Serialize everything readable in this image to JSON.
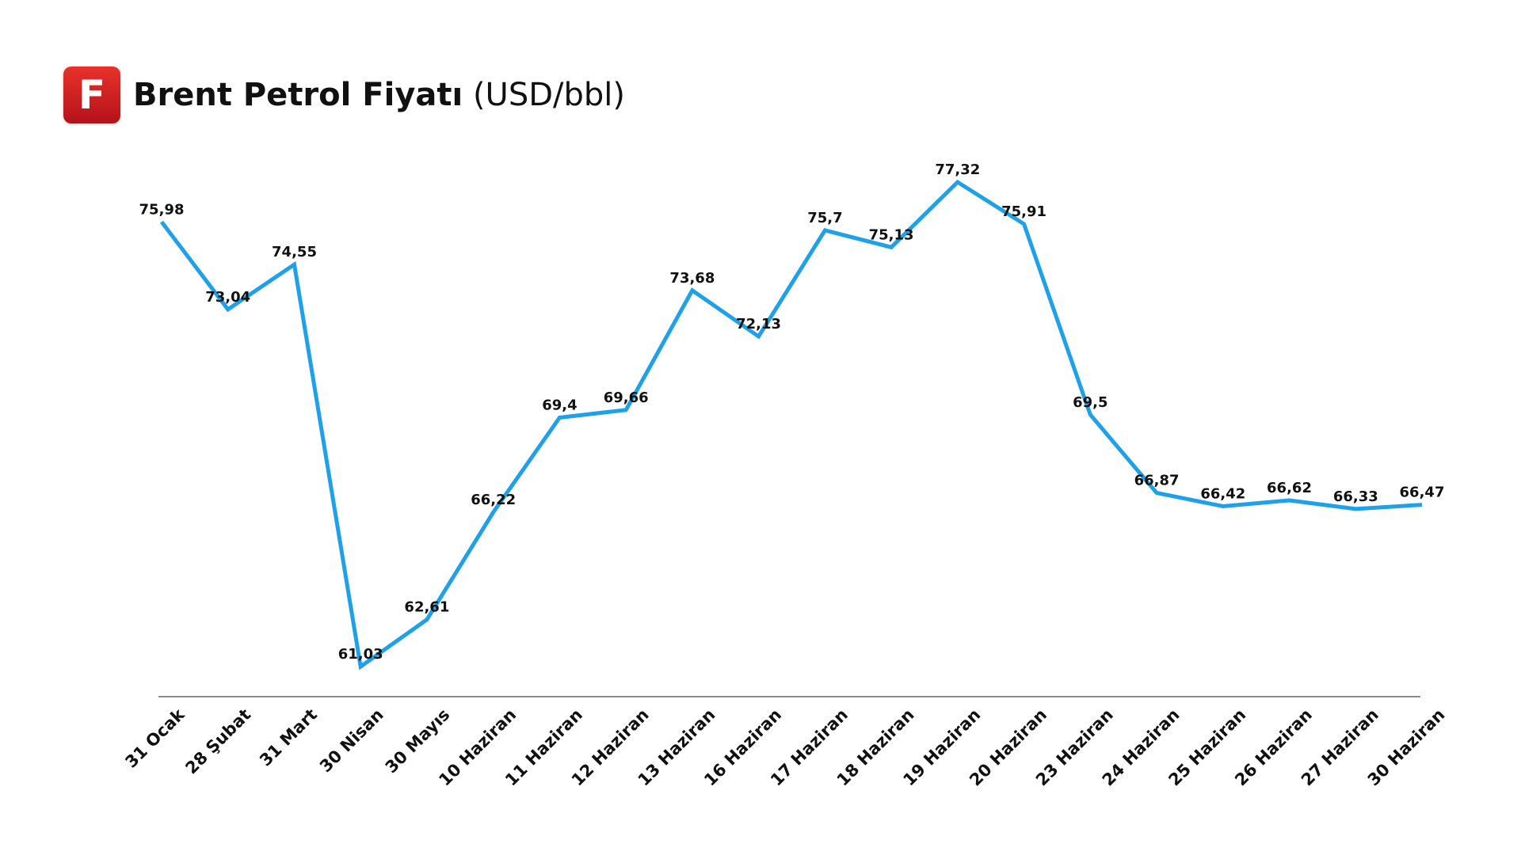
{
  "brand": {
    "logo_letter": "F",
    "logo_color": "#d4202a"
  },
  "header": {
    "title_bold": "Brent Petrol Fiyatı",
    "title_unit": "(USD/bbl)"
  },
  "chart_data": {
    "type": "line",
    "title": "Brent Petrol Fiyatı (USD/bbl)",
    "xlabel": "",
    "ylabel": "",
    "categories": [
      "31 Ocak",
      "28 Şubat",
      "31 Mart",
      "30 Nisan",
      "30 Mayıs",
      "10 Haziran",
      "11 Haziran",
      "12 Haziran",
      "13 Haziran",
      "16 Haziran",
      "17 Haziran",
      "18 Haziran",
      "19 Haziran",
      "20 Haziran",
      "23 Haziran",
      "24 Haziran",
      "25 Haziran",
      "26 Haziran",
      "27 Haziran",
      "30 Haziran"
    ],
    "series": [
      {
        "values": [
          75.98,
          73.04,
          74.55,
          61.03,
          62.61,
          66.22,
          69.4,
          69.66,
          73.68,
          72.13,
          75.7,
          75.13,
          77.32,
          75.91,
          69.5,
          66.87,
          66.42,
          66.62,
          66.33,
          66.47
        ],
        "labels": [
          "75,98",
          "73,04",
          "74,55",
          "61,03",
          "62,61",
          "66,22",
          "69,4",
          "69,66",
          "73,68",
          "72,13",
          "75,7",
          "75,13",
          "77,32",
          "75,91",
          "69,5",
          "66,87",
          "66,42",
          "66,62",
          "66,33",
          "66,47"
        ],
        "color": "#1ea1e8"
      }
    ],
    "grid": false,
    "legend": "none"
  }
}
